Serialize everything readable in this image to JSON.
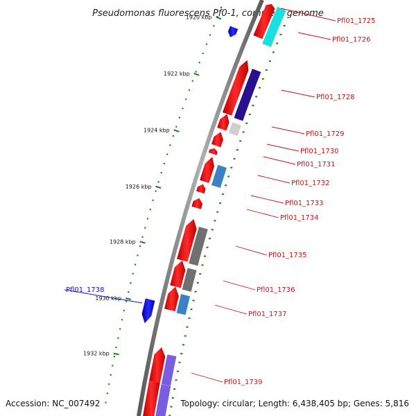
{
  "title": "Pseudomonas fluorescens Pf0-1, complete genome",
  "footer": {
    "accession": "Accession: NC_007492",
    "summary": "Topology: circular; Length: 6,438,405 bp; Genes: 5,816"
  },
  "colors": {
    "forward_gene": "#e8171b",
    "reverse_gene": "#1515e0",
    "label_forward": "#cc1111",
    "label_reverse": "#1111cc",
    "tick": "#1a7a1a",
    "backbone": "#8a8a8a"
  },
  "scale": {
    "unit": "kbp",
    "ticks": [
      {
        "label": "1920 kbp"
      },
      {
        "label": "1922 kbp"
      },
      {
        "label": "1924 kbp"
      },
      {
        "label": "1926 kbp"
      },
      {
        "label": "1928 kbp"
      },
      {
        "label": "1930 kbp"
      },
      {
        "label": "1932 kbp"
      }
    ]
  },
  "genes": [
    {
      "name": "Pfl01_1725",
      "strand": "+",
      "cog_color": "#19e0e0"
    },
    {
      "name": "Pfl01_1726",
      "strand": "+",
      "cog_color": "#19e0e0"
    },
    {
      "name": "Pfl01_1728",
      "strand": "+",
      "cog_color": "#2a1090"
    },
    {
      "name": "Pfl01_1729",
      "strand": "+",
      "cog_color": "#cfcfcf"
    },
    {
      "name": "Pfl01_1730",
      "strand": "+",
      "cog_color": ""
    },
    {
      "name": "Pfl01_1731",
      "strand": "+",
      "cog_color": ""
    },
    {
      "name": "Pfl01_1732",
      "strand": "+",
      "cog_color": "#3b82c4"
    },
    {
      "name": "Pfl01_1733",
      "strand": "+",
      "cog_color": ""
    },
    {
      "name": "Pfl01_1734",
      "strand": "+",
      "cog_color": ""
    },
    {
      "name": "Pfl01_1735",
      "strand": "+",
      "cog_color": "#707070"
    },
    {
      "name": "Pfl01_1736",
      "strand": "+",
      "cog_color": "#707070"
    },
    {
      "name": "Pfl01_1737",
      "strand": "+",
      "cog_color": "#3b82c4"
    },
    {
      "name": "Pfl01_1738",
      "strand": "-",
      "cog_color": ""
    },
    {
      "name": "Pfl01_1739",
      "strand": "+",
      "cog_color": "#7a5ee0"
    }
  ]
}
